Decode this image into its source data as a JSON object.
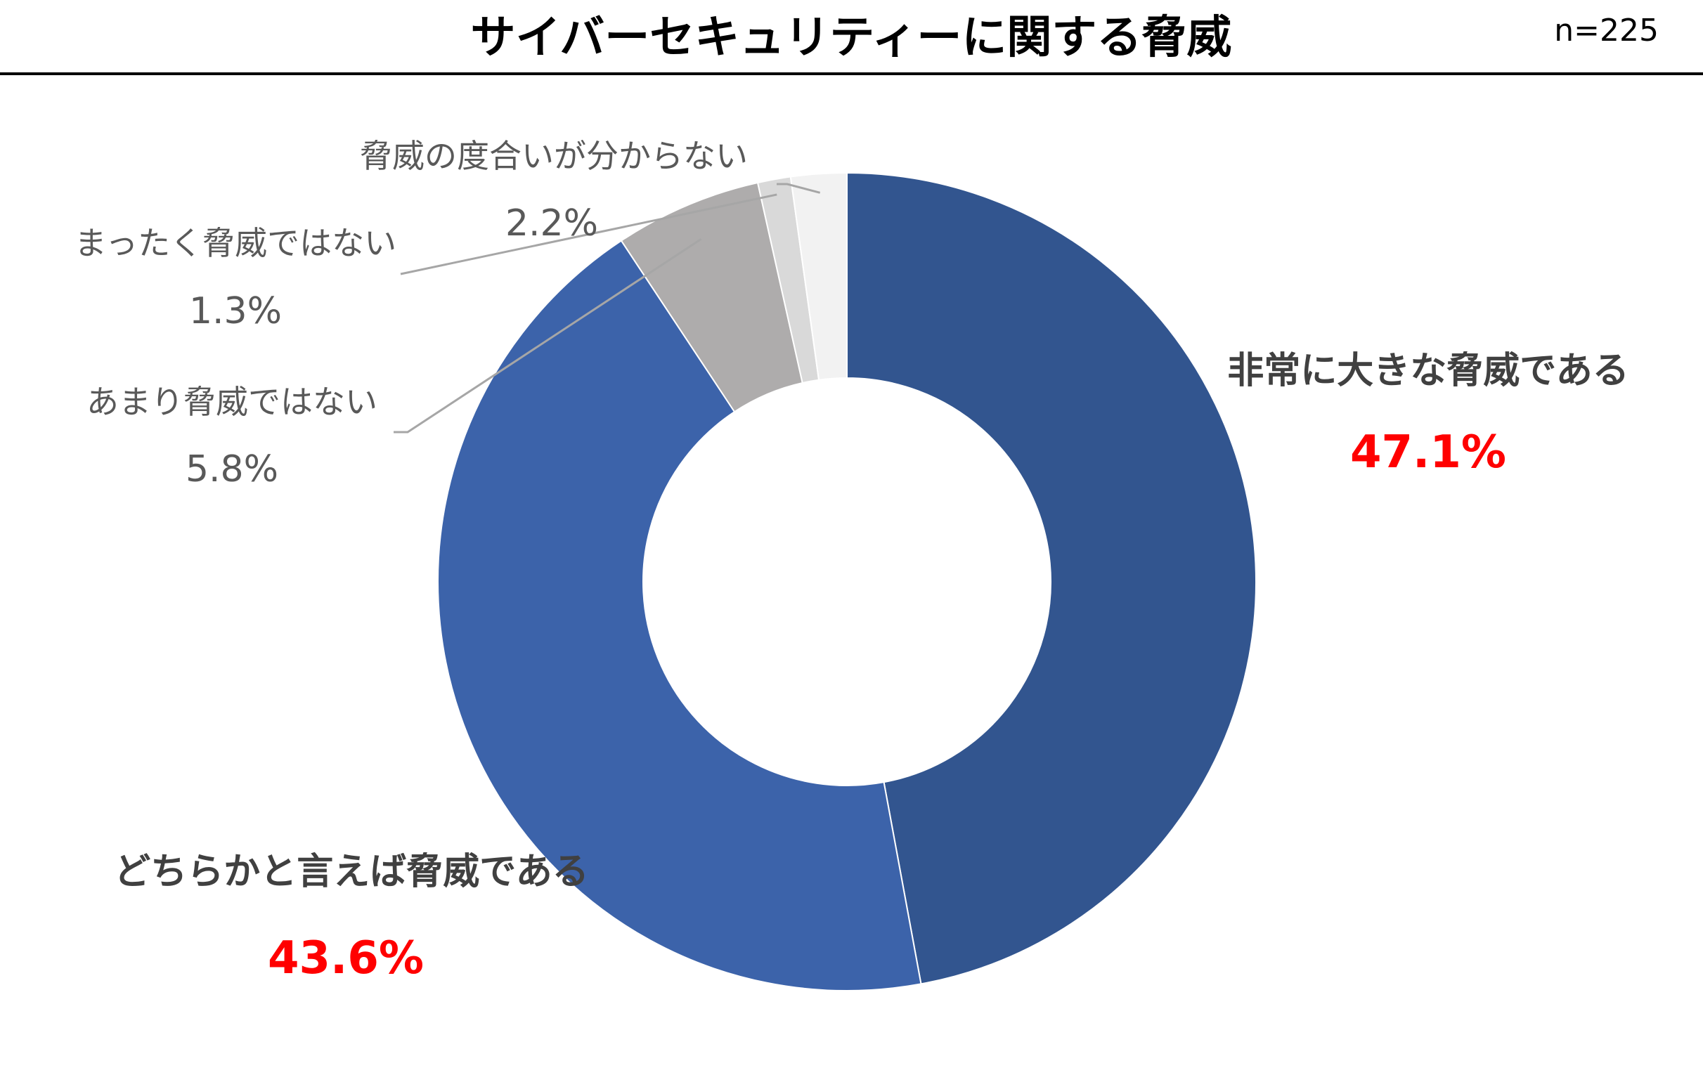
{
  "header": {
    "title": "サイバーセキュリティーに関する脅威",
    "sample_size": "n=225"
  },
  "chart_data": {
    "type": "pie",
    "variant": "donut",
    "title": "サイバーセキュリティーに関する脅威",
    "start": "top",
    "direction": "clockwise",
    "slices": [
      {
        "label": "非常に大きな脅威である",
        "value": 47.1,
        "pct_label": "47.1%",
        "color": "#32558f"
      },
      {
        "label": "どちらかと言えば脅威である",
        "value": 43.6,
        "pct_label": "43.6%",
        "color": "#3c63aa"
      },
      {
        "label": "あまり脅威ではない",
        "value": 5.8,
        "pct_label": "5.8%",
        "color": "#aeacac"
      },
      {
        "label": "まったく脅威ではない",
        "value": 1.3,
        "pct_label": "1.3%",
        "color": "#d9d9d9"
      },
      {
        "label": "脅威の度合いが分からない",
        "value": 2.2,
        "pct_label": "2.2%",
        "color": "#f2f2f2"
      }
    ]
  }
}
